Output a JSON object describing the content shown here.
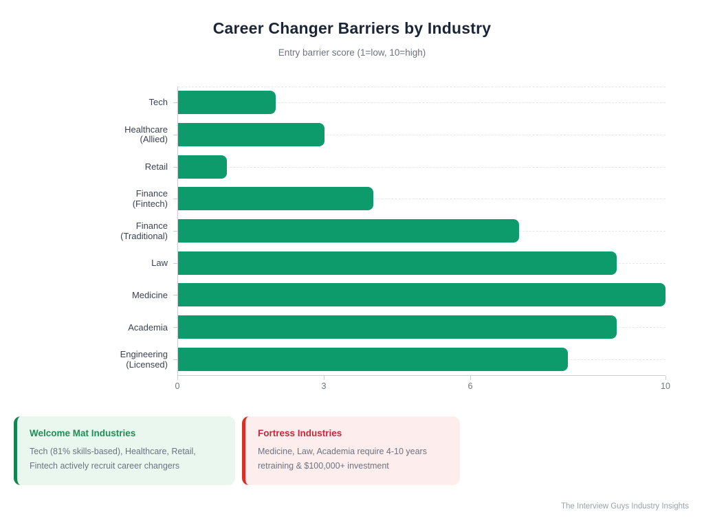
{
  "chart_data": {
    "type": "bar",
    "orientation": "horizontal",
    "title": "Career Changer Barriers by Industry",
    "subtitle": "Entry barrier score (1=low, 10=high)",
    "categories": [
      "Tech",
      "Healthcare (Allied)",
      "Retail",
      "Finance (Fintech)",
      "Finance (Traditional)",
      "Law",
      "Medicine",
      "Academia",
      "Engineering (Licensed)"
    ],
    "category_label_lines": [
      [
        "Tech"
      ],
      [
        "Healthcare",
        "(Allied)"
      ],
      [
        "Retail"
      ],
      [
        "Finance",
        "(Fintech)"
      ],
      [
        "Finance",
        "(Traditional)"
      ],
      [
        "Law"
      ],
      [
        "Medicine"
      ],
      [
        "Academia"
      ],
      [
        "Engineering",
        "(Licensed)"
      ]
    ],
    "values": [
      2,
      3,
      1,
      4,
      7,
      9,
      10,
      9,
      8
    ],
    "xlim": [
      0,
      10
    ],
    "x_ticks": [
      0,
      3,
      6,
      10
    ],
    "bar_color": "#0d9b6b",
    "grid": "horizontal dashed",
    "legend": "none",
    "xlabel": "",
    "ylabel": ""
  },
  "callouts": [
    {
      "title": "Welcome Mat Industries",
      "body": "Tech (81% skills-based), Healthcare, Retail, Fintech actively recruit career changers",
      "accent_color": "#13854e",
      "title_color": "#1d8e55",
      "background": "#e9f7ef"
    },
    {
      "title": "Fortress Industries",
      "body": "Medicine, Law, Academia require 4-10 years retraining & $100,000+ investment",
      "accent_color": "#d93025",
      "title_color": "#c62839",
      "background": "#fdeeed"
    }
  ],
  "footer": {
    "attribution": "The Interview Guys Industry Insights"
  }
}
